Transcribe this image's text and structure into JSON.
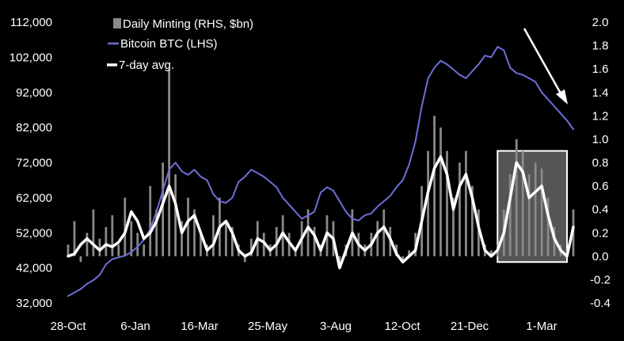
{
  "chart_data": {
    "type": "bar",
    "title": "",
    "xlabel": "",
    "ylabel_left": "",
    "ylabel_right": "",
    "grid": false,
    "legend_position": "top-left",
    "x_tick_labels": [
      "28-Oct",
      "6-Jan",
      "16-Mar",
      "25-May",
      "3-Aug",
      "12-Oct",
      "21-Dec",
      "1-Mar"
    ],
    "left_axis": {
      "ticks": [
        "112,000",
        "102,000",
        "92,000",
        "82,000",
        "72,000",
        "62,000",
        "52,000",
        "42,000",
        "32,000"
      ],
      "ylim": [
        32000,
        112000
      ]
    },
    "right_axis": {
      "ticks": [
        "2.0",
        "1.8",
        "1.6",
        "1.4",
        "1.2",
        "1.0",
        "0.8",
        "0.6",
        "0.4",
        "0.2",
        "0.0",
        "-0.2",
        "-0.4"
      ],
      "ylim": [
        -0.4,
        2.0
      ]
    },
    "x_weeks": [
      0,
      1,
      2,
      3,
      4,
      5,
      6,
      7,
      8,
      9,
      10,
      11,
      12,
      13,
      14,
      15,
      16,
      17,
      18,
      19,
      20,
      21,
      22,
      23,
      24,
      25,
      26,
      27,
      28,
      29,
      30,
      31,
      32,
      33,
      34,
      35,
      36,
      37,
      38,
      39,
      40,
      41,
      42,
      43,
      44,
      45,
      46,
      47,
      48,
      49,
      50,
      51,
      52,
      53,
      54,
      55,
      56,
      57,
      58,
      59,
      60,
      61,
      62,
      63,
      64,
      65,
      66,
      67,
      68,
      69,
      70,
      71,
      72,
      73,
      74,
      75,
      76,
      77,
      78,
      79,
      80
    ],
    "series": [
      {
        "name": "Bitcoin BTC (LHS)",
        "axis": "left",
        "color": "#6b6fd6",
        "kind": "line",
        "values": [
          34000,
          35000,
          36000,
          37500,
          38500,
          40000,
          43000,
          44500,
          45000,
          45500,
          46500,
          48000,
          50000,
          53000,
          58000,
          64000,
          70000,
          72000,
          69500,
          68500,
          70000,
          68000,
          67000,
          63000,
          61000,
          60500,
          62000,
          66500,
          68000,
          70000,
          69000,
          68000,
          66500,
          65000,
          62000,
          60000,
          58000,
          56000,
          57000,
          58000,
          63500,
          65000,
          64000,
          61000,
          58000,
          56000,
          55500,
          57000,
          57500,
          59500,
          61000,
          62500,
          65000,
          67000,
          71500,
          78000,
          88000,
          96000,
          99000,
          101000,
          100000,
          98500,
          97000,
          96000,
          98000,
          100000,
          102500,
          102000,
          105000,
          104000,
          99000,
          97500,
          97000,
          96000,
          95000,
          92000,
          90000,
          88000,
          86000,
          84000,
          81500
        ]
      },
      {
        "name": "7-day avg.",
        "axis": "right",
        "color": "#ffffff",
        "kind": "line",
        "values": [
          0.0,
          0.02,
          0.1,
          0.15,
          0.1,
          0.05,
          0.1,
          0.08,
          0.12,
          0.2,
          0.38,
          0.3,
          0.15,
          0.2,
          0.3,
          0.45,
          0.6,
          0.45,
          0.2,
          0.3,
          0.35,
          0.2,
          0.05,
          0.1,
          0.25,
          0.3,
          0.2,
          0.05,
          0.0,
          0.03,
          0.15,
          0.12,
          0.05,
          0.1,
          0.2,
          0.12,
          0.05,
          0.15,
          0.25,
          0.18,
          0.05,
          0.2,
          0.15,
          -0.1,
          0.05,
          0.2,
          0.1,
          0.05,
          0.1,
          0.2,
          0.25,
          0.15,
          0.02,
          -0.05,
          0.0,
          0.05,
          0.3,
          0.55,
          0.75,
          0.85,
          0.7,
          0.4,
          0.6,
          0.7,
          0.5,
          0.25,
          0.05,
          0.0,
          0.05,
          0.2,
          0.5,
          0.8,
          0.72,
          0.5,
          0.55,
          0.6,
          0.35,
          0.15,
          0.05,
          0.0,
          0.25
        ]
      },
      {
        "name": "Daily Minting (RHS, $bn)",
        "axis": "right",
        "color": "#8a8a8a",
        "kind": "bar",
        "values": [
          0.1,
          0.3,
          -0.05,
          0.2,
          0.4,
          0.15,
          0.25,
          0.35,
          0.1,
          0.5,
          0.3,
          0.2,
          0.1,
          0.6,
          0.4,
          0.8,
          1.6,
          0.7,
          0.3,
          0.5,
          0.4,
          0.2,
          0.1,
          0.35,
          0.5,
          0.3,
          0.25,
          0.1,
          -0.05,
          0.15,
          0.3,
          0.2,
          0.1,
          0.25,
          0.35,
          0.2,
          0.05,
          0.3,
          0.4,
          0.25,
          0.1,
          0.35,
          0.3,
          -0.1,
          0.1,
          0.4,
          0.2,
          0.1,
          0.2,
          0.3,
          0.4,
          0.25,
          0.1,
          -0.05,
          0.05,
          0.2,
          0.6,
          0.9,
          1.2,
          1.1,
          0.9,
          0.5,
          0.8,
          0.9,
          0.6,
          0.4,
          0.1,
          0.05,
          0.1,
          0.4,
          0.7,
          1.0,
          0.9,
          0.7,
          0.8,
          0.75,
          0.5,
          0.25,
          0.1,
          0.05,
          0.4
        ]
      }
    ],
    "highlight_box": {
      "x_range": [
        68,
        79
      ],
      "y_range": [
        -0.05,
        0.9
      ],
      "color": "#9a9a9a"
    },
    "trend_arrow": {
      "direction": "down-right",
      "color": "#ffffff"
    }
  }
}
